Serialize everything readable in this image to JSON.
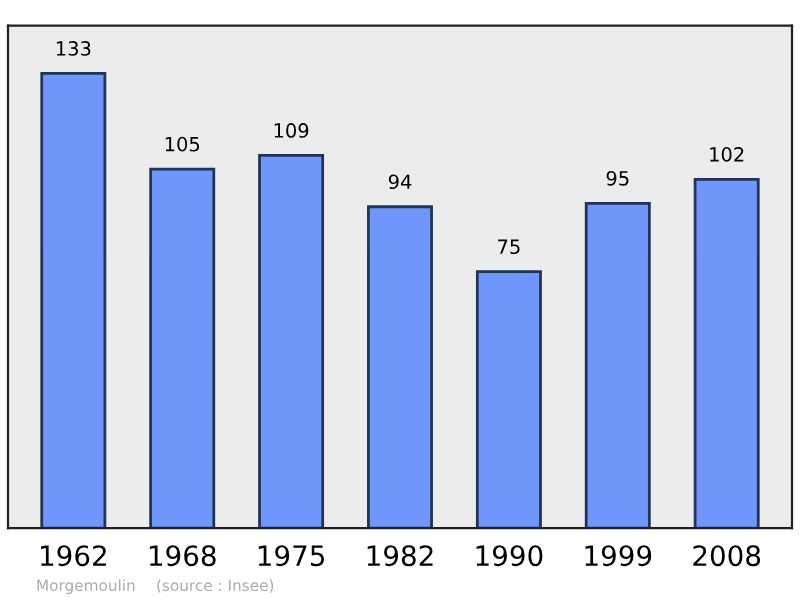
{
  "chart_data": {
    "type": "bar",
    "categories": [
      "1962",
      "1968",
      "1975",
      "1982",
      "1990",
      "1999",
      "2008"
    ],
    "values": [
      133,
      105,
      109,
      94,
      75,
      95,
      102
    ],
    "color": "#6f96fa",
    "data_labels": true,
    "grid": false,
    "annotations": [
      "Morgemoulin",
      "(source : Insee)"
    ]
  }
}
